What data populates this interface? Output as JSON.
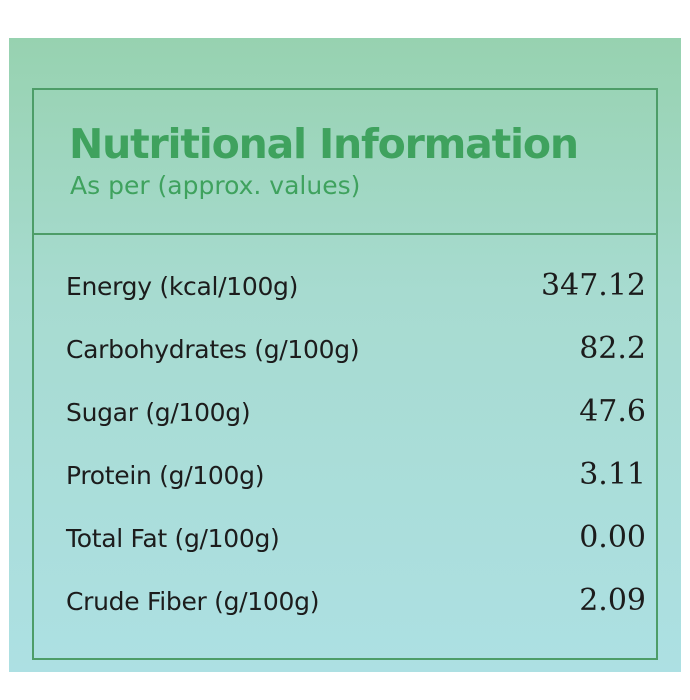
{
  "header": {
    "title": "Nutritional Information",
    "subtitle": "As per (approx. values)"
  },
  "nutrients": [
    {
      "label": "Energy (kcal/100g)",
      "value": "347.12"
    },
    {
      "label": "Carbohydrates (g/100g)",
      "value": "82.2"
    },
    {
      "label": "Sugar (g/100g)",
      "value": "47.6"
    },
    {
      "label": "Protein (g/100g)",
      "value": "3.11"
    },
    {
      "label": "Total Fat (g/100g)",
      "value": "0.00"
    },
    {
      "label": "Crude Fiber (g/100g)",
      "value": "2.09"
    }
  ],
  "colors": {
    "accent_green": "#3fa25e",
    "border_green": "#4d9d68",
    "gradient_top": "#97d2b0",
    "gradient_bottom": "#ade0e3",
    "text_dark": "#1c1c1c"
  }
}
